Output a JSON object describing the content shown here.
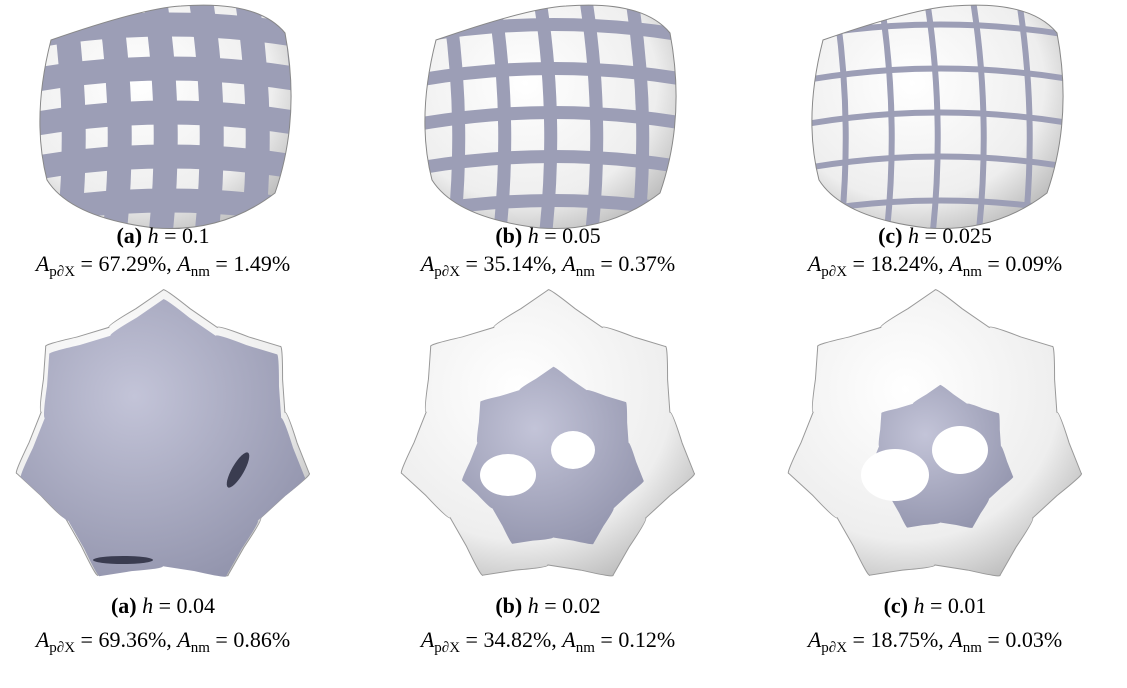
{
  "notation": {
    "h": "h",
    "A": "A",
    "sub1": "p∂X",
    "sub2": "nm",
    "eq": "=",
    "sep": ","
  },
  "panels": [
    {
      "tag": "(a)",
      "h": "0.1",
      "a1": "67.29%",
      "a2": "1.49%"
    },
    {
      "tag": "(b)",
      "h": "0.05",
      "a1": "35.14%",
      "a2": "0.37%"
    },
    {
      "tag": "(c)",
      "h": "0.025",
      "a1": "18.24%",
      "a2": "0.09%"
    },
    {
      "tag": "(a)",
      "h": "0.04",
      "a1": "69.36%",
      "a2": "0.86%"
    },
    {
      "tag": "(b)",
      "h": "0.02",
      "a1": "34.82%",
      "a2": "0.12%"
    },
    {
      "tag": "(c)",
      "h": "0.01",
      "a1": "18.75%",
      "a2": "0.03%"
    }
  ]
}
